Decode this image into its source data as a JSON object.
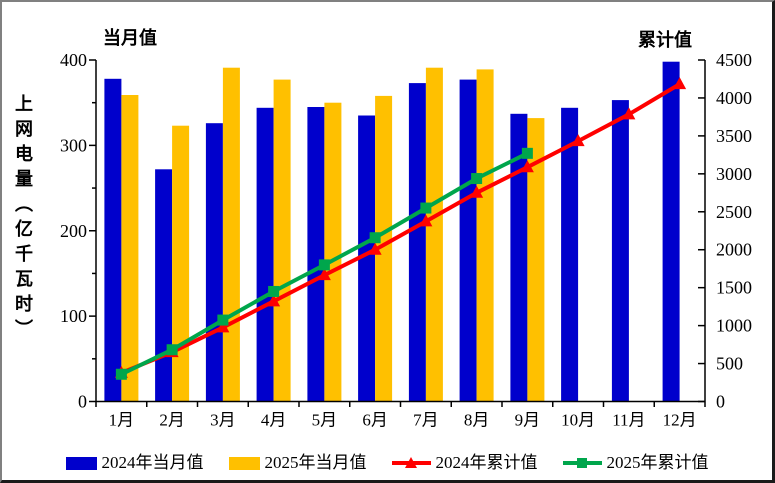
{
  "chart_data": {
    "type": "bar",
    "title": "",
    "categories": [
      "1月",
      "2月",
      "3月",
      "4月",
      "5月",
      "6月",
      "7月",
      "8月",
      "9月",
      "10月",
      "11月",
      "12月"
    ],
    "value_axis_label": "上网电量（亿千瓦时）",
    "left_axis": {
      "title": "当月值",
      "min": 0,
      "max": 400,
      "tick_step": 100,
      "minor_tick_step": 50
    },
    "right_axis": {
      "title": "累计值",
      "min": 0,
      "max": 4500,
      "tick_step": 500
    },
    "bar_series": [
      {
        "name": "2024年当月值",
        "color": "#0000CC",
        "axis": "left",
        "values": [
          378,
          272,
          326,
          344,
          345,
          335,
          373,
          377,
          337,
          344,
          353,
          398
        ]
      },
      {
        "name": "2025年当月值",
        "color": "#FFC000",
        "axis": "left",
        "values": [
          359,
          323,
          391,
          377,
          350,
          358,
          391,
          389,
          332
        ]
      }
    ],
    "line_series": [
      {
        "name": "2024年累计值",
        "color": "#FF0000",
        "marker": "triangle",
        "axis": "right",
        "values": [
          378,
          650,
          976,
          1320,
          1665,
          2000,
          2373,
          2750,
          3087,
          3431,
          3784,
          4182
        ]
      },
      {
        "name": "2025年累计值",
        "color": "#00A64C",
        "marker": "square",
        "axis": "right",
        "values": [
          359,
          682,
          1073,
          1450,
          1800,
          2158,
          2549,
          2938,
          3270
        ]
      }
    ],
    "legend": {
      "items": [
        {
          "label": "2024年当月值",
          "swatch": "bar",
          "color": "#0000CC"
        },
        {
          "label": "2025年当月值",
          "swatch": "bar",
          "color": "#FFC000"
        },
        {
          "label": "2024年累计值",
          "swatch": "line-triangle",
          "color": "#FF0000"
        },
        {
          "label": "2025年累计值",
          "swatch": "line-square",
          "color": "#00A64C"
        }
      ],
      "position": "bottom"
    },
    "grid": false,
    "axis_color": "#000000"
  }
}
